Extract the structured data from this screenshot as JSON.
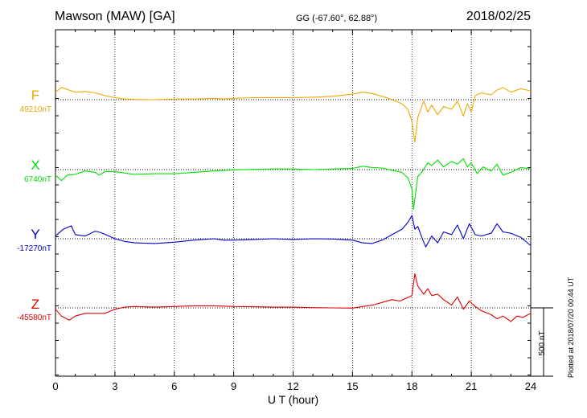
{
  "header": {
    "station": "Mawson (MAW)  [GA]",
    "coords": "GG (-67.60°,  62.88°)",
    "date": "2018/02/25"
  },
  "side_note": "Plotted at 2018/07/20 00:44 UT",
  "scale_bar": {
    "label": "500 nT",
    "value": 500
  },
  "colors": {
    "F": "#f0a800",
    "X": "#00e000",
    "Y": "#0000cc",
    "Z": "#e00000"
  },
  "chart_data": {
    "type": "line",
    "xlabel": "U T (hour)",
    "xlim": [
      0,
      24
    ],
    "xticks": [
      "0",
      "3",
      "6",
      "9",
      "12",
      "15",
      "18",
      "21",
      "24"
    ],
    "grid": true,
    "series": [
      {
        "name": "F",
        "baseline_label": "49210nT",
        "baseline": 49210,
        "color": "#f0a800",
        "points": [
          [
            0,
            49265
          ],
          [
            0.3,
            49300
          ],
          [
            0.7,
            49280
          ],
          [
            1,
            49265
          ],
          [
            1.5,
            49270
          ],
          [
            2,
            49260
          ],
          [
            2.5,
            49240
          ],
          [
            3,
            49225
          ],
          [
            3.5,
            49215
          ],
          [
            4,
            49212
          ],
          [
            5,
            49210
          ],
          [
            6,
            49215
          ],
          [
            7,
            49215
          ],
          [
            8,
            49220
          ],
          [
            8.5,
            49215
          ],
          [
            9,
            49220
          ],
          [
            10,
            49225
          ],
          [
            11,
            49225
          ],
          [
            12,
            49225
          ],
          [
            13,
            49228
          ],
          [
            14,
            49235
          ],
          [
            15,
            49250
          ],
          [
            15.5,
            49265
          ],
          [
            16,
            49255
          ],
          [
            16.5,
            49235
          ],
          [
            17,
            49210
          ],
          [
            17.5,
            49180
          ],
          [
            17.8,
            49140
          ],
          [
            18,
            49050
          ],
          [
            18.15,
            48900
          ],
          [
            18.3,
            49080
          ],
          [
            18.6,
            49200
          ],
          [
            18.8,
            49120
          ],
          [
            19,
            49170
          ],
          [
            19.3,
            49100
          ],
          [
            19.6,
            49160
          ],
          [
            20,
            49140
          ],
          [
            20.3,
            49200
          ],
          [
            20.6,
            49090
          ],
          [
            20.8,
            49180
          ],
          [
            21,
            49120
          ],
          [
            21.2,
            49240
          ],
          [
            21.5,
            49260
          ],
          [
            22,
            49245
          ],
          [
            22.3,
            49280
          ],
          [
            22.6,
            49300
          ],
          [
            23,
            49265
          ],
          [
            23.5,
            49290
          ],
          [
            24,
            49275
          ]
        ]
      },
      {
        "name": "X",
        "baseline_label": "6740nT",
        "baseline": 6740,
        "color": "#00e000",
        "points": [
          [
            0,
            6700
          ],
          [
            0.3,
            6660
          ],
          [
            0.6,
            6700
          ],
          [
            1,
            6705
          ],
          [
            1.5,
            6730
          ],
          [
            2,
            6720
          ],
          [
            2.2,
            6700
          ],
          [
            2.5,
            6725
          ],
          [
            3,
            6725
          ],
          [
            3.5,
            6715
          ],
          [
            4,
            6705
          ],
          [
            5,
            6710
          ],
          [
            6,
            6710
          ],
          [
            6.5,
            6715
          ],
          [
            7,
            6720
          ],
          [
            8,
            6730
          ],
          [
            9,
            6738
          ],
          [
            10,
            6742
          ],
          [
            11,
            6745
          ],
          [
            12,
            6745
          ],
          [
            13,
            6740
          ],
          [
            14,
            6745
          ],
          [
            15,
            6748
          ],
          [
            15.5,
            6765
          ],
          [
            16,
            6755
          ],
          [
            16.5,
            6752
          ],
          [
            17,
            6735
          ],
          [
            17.5,
            6720
          ],
          [
            17.8,
            6680
          ],
          [
            18,
            6600
          ],
          [
            18.08,
            6450
          ],
          [
            18.3,
            6690
          ],
          [
            18.5,
            6720
          ],
          [
            18.8,
            6790
          ],
          [
            19,
            6770
          ],
          [
            19.3,
            6810
          ],
          [
            19.6,
            6760
          ],
          [
            20,
            6800
          ],
          [
            20.3,
            6780
          ],
          [
            20.6,
            6820
          ],
          [
            20.8,
            6760
          ],
          [
            21,
            6790
          ],
          [
            21.3,
            6710
          ],
          [
            21.6,
            6760
          ],
          [
            22,
            6730
          ],
          [
            22.3,
            6780
          ],
          [
            22.6,
            6700
          ],
          [
            23,
            6720
          ],
          [
            23.5,
            6755
          ],
          [
            24,
            6745
          ]
        ]
      },
      {
        "name": "Y",
        "baseline_label": "-17270nT",
        "baseline": -17270,
        "color": "#0000cc",
        "points": [
          [
            0,
            -17250
          ],
          [
            0.4,
            -17200
          ],
          [
            0.8,
            -17175
          ],
          [
            1,
            -17240
          ],
          [
            1.5,
            -17250
          ],
          [
            2,
            -17215
          ],
          [
            2.3,
            -17225
          ],
          [
            2.7,
            -17250
          ],
          [
            3,
            -17270
          ],
          [
            3.5,
            -17290
          ],
          [
            4,
            -17300
          ],
          [
            5,
            -17305
          ],
          [
            6,
            -17295
          ],
          [
            7,
            -17280
          ],
          [
            8,
            -17270
          ],
          [
            8.5,
            -17280
          ],
          [
            9,
            -17280
          ],
          [
            10,
            -17275
          ],
          [
            11,
            -17270
          ],
          [
            12,
            -17275
          ],
          [
            13,
            -17270
          ],
          [
            14,
            -17272
          ],
          [
            15,
            -17280
          ],
          [
            15.5,
            -17300
          ],
          [
            16,
            -17305
          ],
          [
            16.5,
            -17280
          ],
          [
            17,
            -17240
          ],
          [
            17.5,
            -17200
          ],
          [
            17.8,
            -17150
          ],
          [
            18,
            -17100
          ],
          [
            18.15,
            -17200
          ],
          [
            18.3,
            -17180
          ],
          [
            18.5,
            -17260
          ],
          [
            18.7,
            -17330
          ],
          [
            19,
            -17250
          ],
          [
            19.3,
            -17300
          ],
          [
            19.6,
            -17220
          ],
          [
            20,
            -17240
          ],
          [
            20.3,
            -17170
          ],
          [
            20.6,
            -17270
          ],
          [
            20.9,
            -17160
          ],
          [
            21.2,
            -17240
          ],
          [
            21.5,
            -17250
          ],
          [
            22,
            -17230
          ],
          [
            22.3,
            -17160
          ],
          [
            22.6,
            -17220
          ],
          [
            23,
            -17230
          ],
          [
            23.5,
            -17260
          ],
          [
            24,
            -17320
          ]
        ]
      },
      {
        "name": "Z",
        "baseline_label": "-45580nT",
        "baseline": -45580,
        "color": "#e00000",
        "points": [
          [
            0,
            -45590
          ],
          [
            0.3,
            -45640
          ],
          [
            0.7,
            -45670
          ],
          [
            1,
            -45640
          ],
          [
            1.5,
            -45620
          ],
          [
            2,
            -45620
          ],
          [
            2.5,
            -45620
          ],
          [
            3,
            -45590
          ],
          [
            3.5,
            -45575
          ],
          [
            4,
            -45570
          ],
          [
            5,
            -45575
          ],
          [
            6,
            -45570
          ],
          [
            7,
            -45565
          ],
          [
            8,
            -45565
          ],
          [
            9,
            -45570
          ],
          [
            10,
            -45572
          ],
          [
            11,
            -45575
          ],
          [
            12,
            -45575
          ],
          [
            13,
            -45578
          ],
          [
            14,
            -45580
          ],
          [
            15,
            -45582
          ],
          [
            15.5,
            -45570
          ],
          [
            16,
            -45560
          ],
          [
            16.5,
            -45540
          ],
          [
            17,
            -45520
          ],
          [
            17.4,
            -45530
          ],
          [
            17.7,
            -45510
          ],
          [
            18,
            -45490
          ],
          [
            18.15,
            -45330
          ],
          [
            18.3,
            -45420
          ],
          [
            18.6,
            -45480
          ],
          [
            18.8,
            -45440
          ],
          [
            19,
            -45490
          ],
          [
            19.3,
            -45480
          ],
          [
            19.6,
            -45520
          ],
          [
            20,
            -45560
          ],
          [
            20.3,
            -45500
          ],
          [
            20.6,
            -45590
          ],
          [
            20.9,
            -45530
          ],
          [
            21.2,
            -45570
          ],
          [
            21.5,
            -45600
          ],
          [
            22,
            -45630
          ],
          [
            22.3,
            -45660
          ],
          [
            22.6,
            -45640
          ],
          [
            23,
            -45680
          ],
          [
            23.3,
            -45640
          ],
          [
            23.6,
            -45650
          ],
          [
            24,
            -45620
          ]
        ]
      }
    ]
  }
}
